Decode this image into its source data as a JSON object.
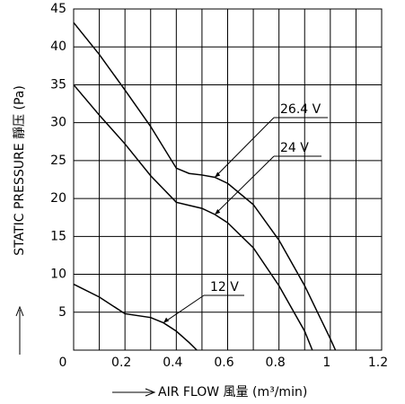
{
  "chart_data": {
    "type": "line",
    "xlabel": "AIR FLOW 風量 (m³/min)",
    "ylabel": "STATIC PRESSURE 靜压 (Pa)",
    "xlim": [
      0,
      1.2
    ],
    "ylim": [
      0,
      45
    ],
    "xticks": [
      0,
      0.2,
      0.4,
      0.6,
      0.8,
      1.0,
      1.2
    ],
    "xminor": [
      0.1,
      0.3,
      0.5,
      0.7,
      0.9,
      1.1
    ],
    "yticks": [
      5,
      10,
      15,
      20,
      25,
      30,
      35,
      40,
      45
    ],
    "grid": true,
    "series": [
      {
        "name": "26.4 V",
        "color": "#000000",
        "x": [
          0,
          0.1,
          0.2,
          0.3,
          0.4,
          0.45,
          0.5,
          0.55,
          0.6,
          0.7,
          0.8,
          0.9,
          0.95,
          1.0,
          1.02
        ],
        "values": [
          43.2,
          39,
          34.3,
          29.5,
          24,
          23.3,
          23.1,
          22.8,
          22,
          19.2,
          14.5,
          8.5,
          5,
          1.5,
          0
        ]
      },
      {
        "name": "24 V",
        "color": "#000000",
        "x": [
          0,
          0.1,
          0.2,
          0.3,
          0.4,
          0.45,
          0.5,
          0.55,
          0.6,
          0.7,
          0.8,
          0.9,
          0.93
        ],
        "values": [
          35,
          31,
          27.2,
          23,
          19.5,
          19.1,
          18.7,
          17.9,
          16.8,
          13.5,
          8.5,
          2.5,
          0
        ]
      },
      {
        "name": "12 V",
        "color": "#000000",
        "x": [
          0,
          0.1,
          0.2,
          0.3,
          0.35,
          0.4,
          0.45,
          0.48
        ],
        "values": [
          8.7,
          7,
          4.8,
          4.3,
          3.6,
          2.5,
          1,
          0
        ]
      }
    ]
  }
}
